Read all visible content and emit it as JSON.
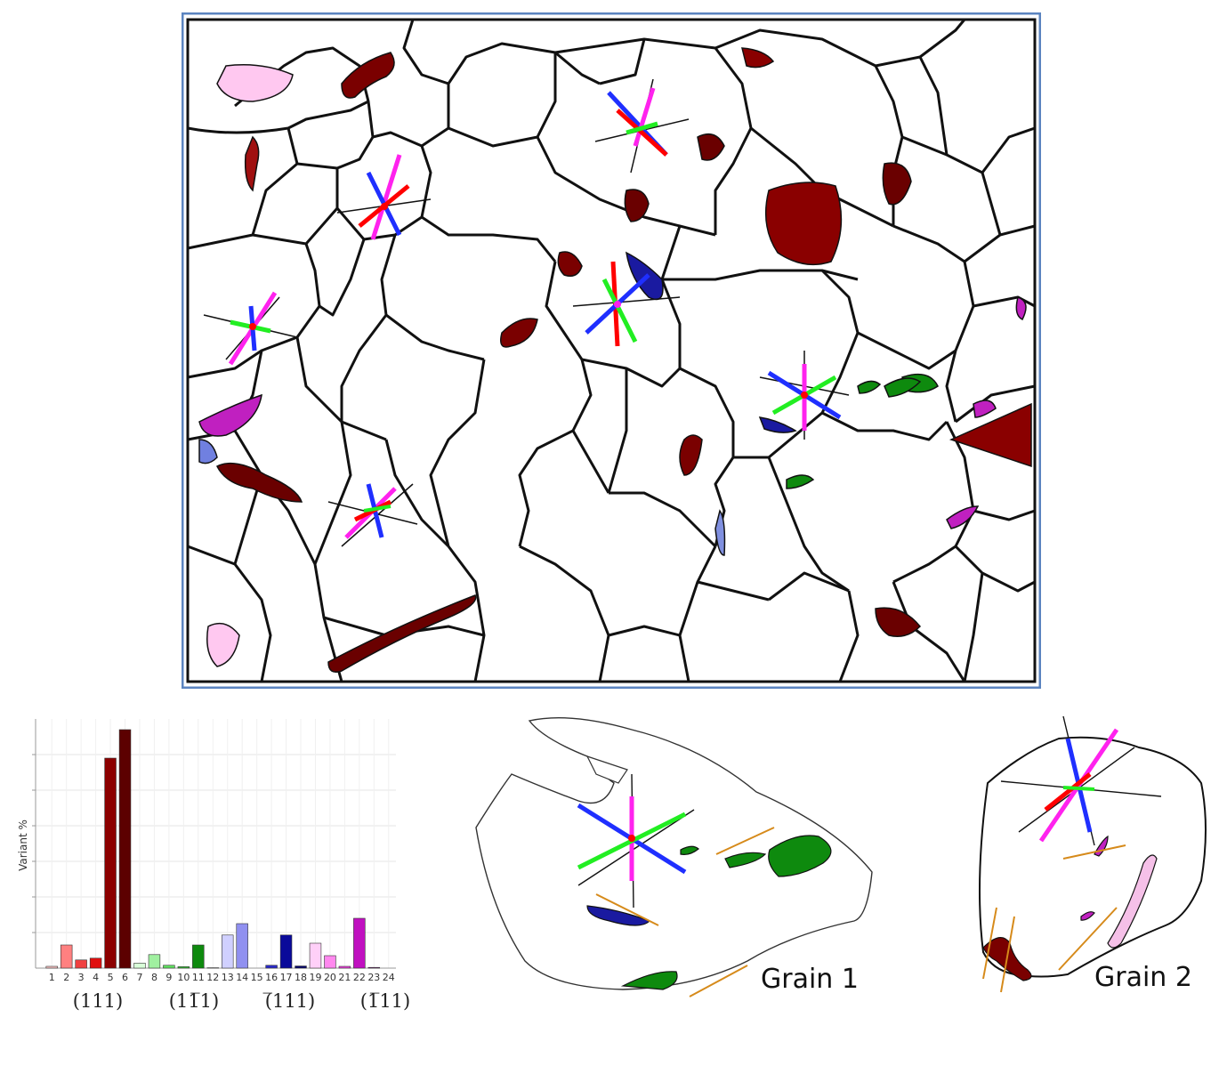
{
  "colors": {
    "frame": "#5b84c0",
    "boundary": "#111111",
    "v111": "#7a0000",
    "v11-1": "#0e8a0e",
    "v-111": "#1a1aa0",
    "v1-11": "#c020c0",
    "line_red": "#ff0000",
    "line_green": "#22ee22",
    "line_blue": "#1f2fff",
    "line_magenta": "#ff22ee",
    "trace_orange": "#d68a1a"
  },
  "grain_labels": {
    "grain1": "Grain 1",
    "grain2": "Grain 2"
  },
  "chart_data": {
    "type": "bar",
    "ylabel": "Variant %",
    "categories": [
      "1",
      "2",
      "3",
      "4",
      "5",
      "6",
      "7",
      "8",
      "9",
      "10",
      "11",
      "12",
      "13",
      "14",
      "15",
      "16",
      "17",
      "18",
      "19",
      "20",
      "21",
      "22",
      "23",
      "24"
    ],
    "values": [
      0.5,
      6.5,
      2.3,
      2.8,
      59,
      67,
      1.4,
      3.8,
      0.8,
      0.4,
      6.5,
      0.1,
      9.3,
      12.5,
      0,
      0.8,
      9.3,
      0.6,
      7,
      3.5,
      0.5,
      14,
      0.2,
      0
    ],
    "colors": [
      "#ffc8c8",
      "#ff8080",
      "#f04040",
      "#e01010",
      "#8c0000",
      "#5c0000",
      "#d8ffd8",
      "#a0f0a0",
      "#60e060",
      "#30c030",
      "#0e8a0e",
      "#064006",
      "#d0d0ff",
      "#9090f0",
      "#6060e0",
      "#2a2ac8",
      "#0a0a9a",
      "#05056a",
      "#ffd0f8",
      "#ff88ee",
      "#f040e0",
      "#c010c0",
      "#900090",
      "#600060"
    ],
    "ylim": [
      0,
      70
    ],
    "group_labels": [
      "(111)",
      "(11̅1)",
      "(̅111)",
      "(1̅11)"
    ],
    "grid": true
  }
}
